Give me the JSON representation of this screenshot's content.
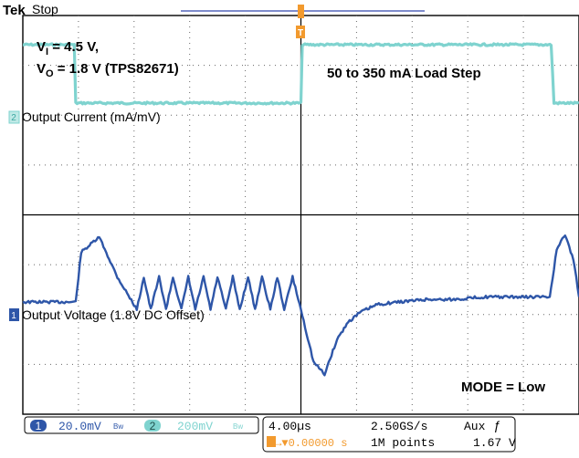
{
  "header": {
    "brand": "Tek",
    "state": "Stop"
  },
  "annotations": {
    "vin": "V",
    "vin_sub": "I",
    "vin_rest": " = 4.5 V,",
    "vout": "V",
    "vout_sub": "O",
    "vout_rest": " = 1.8 V (TPS82671)",
    "load_step": "50 to 350 mA Load Step",
    "mode": "MODE = Low"
  },
  "markers": {
    "trigger": "T"
  },
  "channels": [
    {
      "id": "2",
      "name": "Output Current (mA/mV)",
      "color": "#7fd3cf"
    },
    {
      "id": "1",
      "name": "Output Voltage (1.8V DC Offset)",
      "color": "#2e56a8"
    }
  ],
  "status": {
    "ch1_badge": "1",
    "ch1_scale": "20.0mV",
    "ch1_bw": "Bw",
    "ch2_badge": "2",
    "ch2_scale": "200mV",
    "ch2_bw": "Bw",
    "timebase": "4.00µs",
    "trigger_pos": "T→▼0.00000 s",
    "sample_rate": "2.50GS/s",
    "record_length": "1M points",
    "trig_source": "Aux",
    "trig_slope": "ƒ",
    "trig_level": "1.67 V"
  },
  "chart_data": {
    "type": "line",
    "title": "",
    "xlabel": "",
    "ylabel": "",
    "grid": true,
    "x_divisions": 10,
    "y_divisions": 8,
    "x_units_per_div": "4.00µs",
    "xlim": [
      -20,
      20
    ],
    "series": [
      {
        "name": "Output Current (mA/mV)",
        "channel": "2",
        "units": "mA",
        "scale_per_div": "200mV",
        "x": [
          -20,
          -18,
          -16.3,
          -16.2,
          -8,
          -0.05,
          0,
          0.1,
          8,
          12,
          18.0,
          18.2,
          20
        ],
        "values": [
          350,
          350,
          350,
          50,
          50,
          50,
          50,
          350,
          350,
          350,
          350,
          50,
          50
        ]
      },
      {
        "name": "Output Voltage (1.8V DC Offset)",
        "channel": "1",
        "units": "mV",
        "scale_per_div": "20.0mV",
        "x": [
          -20,
          -18,
          -16.2,
          -15.8,
          -14.5,
          -13.2,
          -11.8,
          -11.3,
          -10.8,
          -10.2,
          -9.7,
          -9.2,
          -8.6,
          -8.1,
          -7.6,
          -7.0,
          -6.5,
          -6.0,
          -5.4,
          -4.9,
          -4.4,
          -3.8,
          -3.3,
          -2.8,
          -2.2,
          -1.7,
          -1.2,
          -0.6,
          0,
          0.3,
          0.9,
          1.7,
          2.6,
          3.4,
          4.3,
          5.5,
          7,
          9,
          11,
          13,
          15,
          17.9,
          18.0,
          18.4,
          19.0,
          19.6,
          20
        ],
        "values": [
          0,
          0,
          0,
          20,
          26,
          10,
          -3,
          10,
          -3,
          10,
          -3,
          10,
          -3,
          10,
          -3,
          10,
          -3,
          10,
          -3,
          10,
          -3,
          10,
          -3,
          10,
          -3,
          10,
          -3,
          10,
          -3,
          -10,
          -24,
          -29,
          -15,
          -8,
          -4,
          -1,
          0,
          1,
          1,
          2,
          2,
          2,
          6,
          21,
          27,
          17,
          2
        ]
      }
    ]
  }
}
